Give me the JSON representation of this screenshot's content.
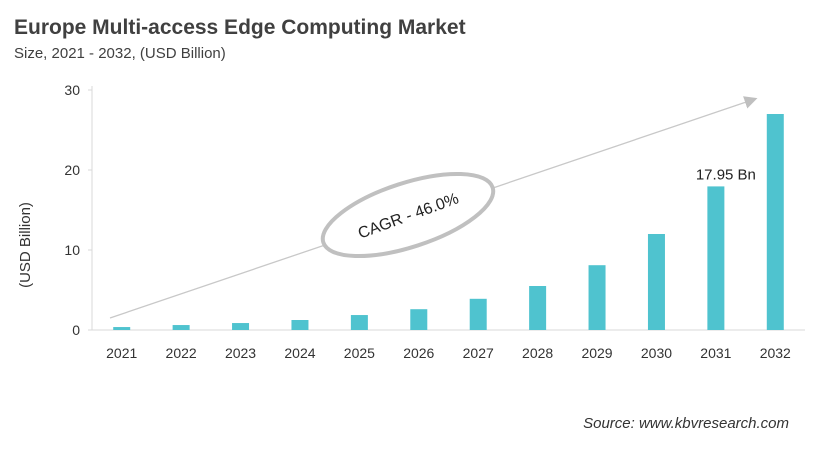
{
  "chart_data": {
    "type": "bar",
    "title": "Europe Multi-access Edge Computing Market",
    "subtitle": "Size, 2021 - 2032, (USD Billion)",
    "xlabel": "",
    "ylabel": "(USD Billion)",
    "ylim": [
      0,
      30
    ],
    "yticks": [
      "0",
      "10",
      "20",
      "30"
    ],
    "categories": [
      "2021",
      "2022",
      "2023",
      "2024",
      "2025",
      "2026",
      "2027",
      "2028",
      "2029",
      "2030",
      "2031",
      "2032"
    ],
    "values": [
      0.37,
      0.62,
      0.87,
      1.25,
      1.87,
      2.6,
      3.9,
      5.5,
      8.1,
      12.0,
      17.95,
      27.0
    ],
    "data_labels": [
      {
        "category": "2031",
        "text": "17.95 Bn"
      }
    ],
    "annotation": "CAGR - 46.0%",
    "grid": false,
    "bar_color": "#4fc3cf",
    "source": "Source: www.kbvresearch.com"
  }
}
